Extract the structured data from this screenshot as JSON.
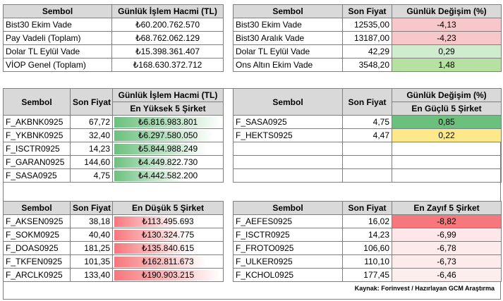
{
  "colors": {
    "red": "#f4a3a8",
    "green": "#b7e1a1",
    "strong_green": "#6cc07e",
    "yellow": "#fde98a",
    "header": "#d9d9d9"
  },
  "index_table": {
    "headers": [
      "Sembol",
      "Günlük İşlem Hacmi (TL)"
    ],
    "rows": [
      [
        "Bist30 Ekim Vade",
        "₺60.200.762.570"
      ],
      [
        "Pay Vadeli (Toplam)",
        "₺68.762.062.129"
      ],
      [
        "Dolar TL Eylül Vade",
        "₺15.398.361.407"
      ],
      [
        "VİOP Genel (Toplam)",
        "₺168.630.372.712"
      ]
    ]
  },
  "price_table": {
    "headers": [
      "Sembol",
      "Son Fiyat",
      "Günlük Değişim (%)"
    ],
    "rows": [
      {
        "symbol": "Bist30 Ekim Vade",
        "price": "12535,00",
        "change": "-4,13",
        "change_value": -4.13
      },
      {
        "symbol": "Bist30 Aralık Vade",
        "price": "13187,00",
        "change": "-4,23",
        "change_value": -4.23
      },
      {
        "symbol": "Dolar TL Eylül Vade",
        "price": "42,29",
        "change": "0,29",
        "change_value": 0.29
      },
      {
        "symbol": "Ons Altın Ekim Vade",
        "price": "3548,20",
        "change": "1,48",
        "change_value": 1.48
      }
    ]
  },
  "top_volume": {
    "headers": [
      "Sembol",
      "Son Fiyat",
      "Günlük İşlem Hacmi (TL)"
    ],
    "subheader": "En Yüksek 5 Şirket",
    "rows": [
      {
        "symbol": "F_AKBNK0925",
        "price": "67,72",
        "volume": "₺6.816.983.801",
        "share": 1.0
      },
      {
        "symbol": "F_YKBNK0925",
        "price": "32,40",
        "volume": "₺6.297.580.050",
        "share": 0.92
      },
      {
        "symbol": "F_ISCTR0925",
        "price": "14,23",
        "volume": "₺5.844.988.249",
        "share": 0.86
      },
      {
        "symbol": "F_GARAN0925",
        "price": "144,60",
        "volume": "₺4.449.822.730",
        "share": 0.65
      },
      {
        "symbol": "F_SASA0925",
        "price": "4,75",
        "volume": "₺4.442.582.200",
        "share": 0.65
      }
    ]
  },
  "top_change": {
    "headers": [
      "Sembol",
      "Son Fiyat",
      "Günlük Değişim (%)"
    ],
    "subheader": "En Güçlü 5 Şirket",
    "rows": [
      {
        "symbol": "F_SASA0925",
        "price": "4,75",
        "change": "0,85"
      },
      {
        "symbol": "F_HEKTS0925",
        "price": "4,47",
        "change": "0,22"
      }
    ]
  },
  "low_volume": {
    "headers": [
      "Sembol",
      "Son Fiyat",
      "En Düşük 5 Şirket"
    ],
    "rows": [
      {
        "symbol": "F_AKSEN0925",
        "price": "38,18",
        "volume": "₺113.495.693",
        "share": 0.59
      },
      {
        "symbol": "F_SOKM0925",
        "price": "40,40",
        "volume": "₺130.324.775",
        "share": 0.68
      },
      {
        "symbol": "F_DOAS0925",
        "price": "181,25",
        "volume": "₺135.840.615",
        "share": 0.71
      },
      {
        "symbol": "F_TKFEN0925",
        "price": "101,35",
        "volume": "₺162.811.673",
        "share": 0.85
      },
      {
        "symbol": "F_ARCLK0925",
        "price": "133,40",
        "volume": "₺190.903.215",
        "share": 1.0
      }
    ]
  },
  "weak_change": {
    "headers": [
      "Sembol",
      "Son Fiyat",
      "En Zayıf 5 Şirket"
    ],
    "rows": [
      {
        "symbol": "F_AEFES0925",
        "price": "16,02",
        "change": "-8,82",
        "color": "#f6777c"
      },
      {
        "symbol": "F_ISCTR0925",
        "price": "14,23",
        "change": "-6,99",
        "color": "#fde7e8"
      },
      {
        "symbol": "F_FROTO0925",
        "price": "106,60",
        "change": "-6,78",
        "color": "#fdeaea"
      },
      {
        "symbol": "F_ULKER0925",
        "price": "110,10",
        "change": "-6,73",
        "color": "#fdeaea"
      },
      {
        "symbol": "F_KCHOL0925",
        "price": "177,45",
        "change": "-6,46",
        "color": "#fdeeee"
      }
    ]
  },
  "source": "Kaynak: Forinvest / Hazırlayan GCM Araştırma"
}
